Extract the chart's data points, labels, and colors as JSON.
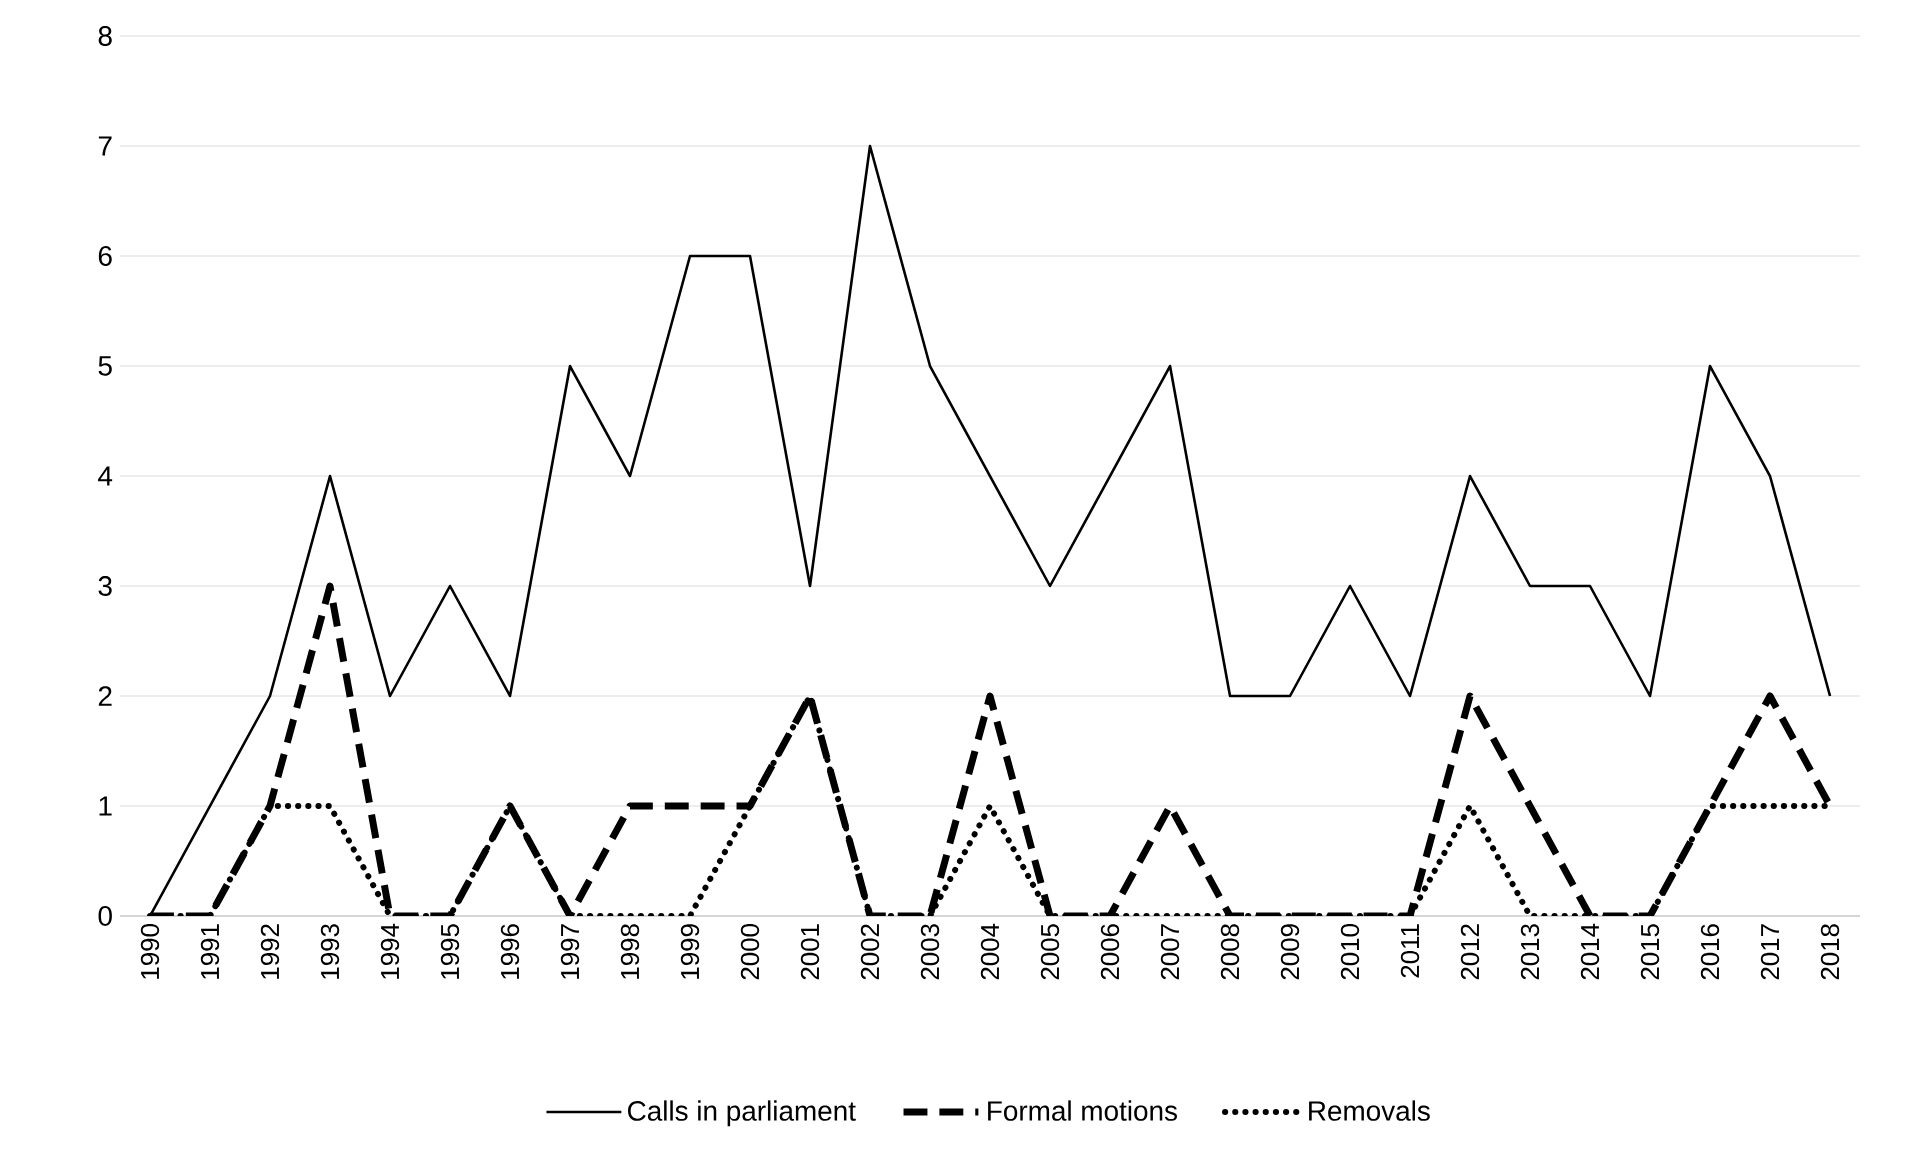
{
  "chart_data": {
    "type": "line",
    "categories": [
      "1990",
      "1991",
      "1992",
      "1993",
      "1994",
      "1995",
      "1996",
      "1997",
      "1998",
      "1999",
      "2000",
      "2001",
      "2002",
      "2003",
      "2004",
      "2005",
      "2006",
      "2007",
      "2008",
      "2009",
      "2010",
      "2011",
      "2012",
      "2013",
      "2014",
      "2015",
      "2016",
      "2017",
      "2018"
    ],
    "series": [
      {
        "name": "Calls in parliament",
        "color": "#000000",
        "line_style": "solid",
        "values": [
          0,
          1,
          2,
          4,
          2,
          3,
          2,
          5,
          4,
          6,
          6,
          3,
          7,
          5,
          4,
          3,
          4,
          5,
          2,
          2,
          3,
          2,
          4,
          3,
          3,
          2,
          5,
          4,
          2
        ]
      },
      {
        "name": "Formal motions",
        "color": "#000000",
        "line_style": "dashed",
        "values": [
          0,
          0,
          1,
          3,
          0,
          0,
          1,
          0,
          1,
          1,
          1,
          2,
          0,
          0,
          2,
          0,
          0,
          1,
          0,
          0,
          0,
          0,
          2,
          1,
          0,
          0,
          1,
          2,
          1
        ]
      },
      {
        "name": "Removals",
        "color": "#000000",
        "line_style": "dotted",
        "values": [
          0,
          0,
          1,
          1,
          0,
          0,
          1,
          0,
          0,
          0,
          1,
          2,
          0,
          0,
          1,
          0,
          0,
          0,
          0,
          0,
          0,
          0,
          1,
          0,
          0,
          0,
          1,
          1,
          1
        ]
      }
    ],
    "ylim": [
      0,
      8
    ],
    "yticks": [
      0,
      1,
      2,
      3,
      4,
      5,
      6,
      7,
      8
    ],
    "grid": "y",
    "legend": "bottom",
    "marker": "none"
  }
}
